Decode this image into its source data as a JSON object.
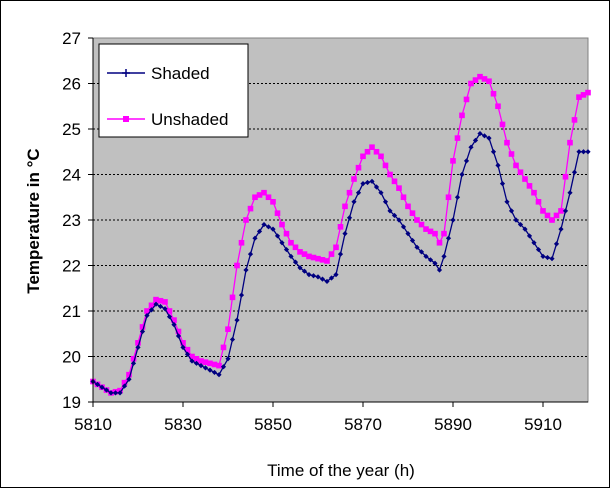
{
  "chart_data": {
    "type": "line",
    "title": "",
    "xlabel": "Time of the year (h)",
    "ylabel": "Temperature in °C",
    "xlim": [
      5810,
      5920
    ],
    "ylim": [
      19,
      27
    ],
    "x_ticks": [
      5810,
      5830,
      5850,
      5870,
      5890,
      5910
    ],
    "y_ticks": [
      19,
      20,
      21,
      22,
      23,
      24,
      25,
      26,
      27
    ],
    "grid": "horizontal",
    "plot_background": "#c0c0c0",
    "legend_position": "top-left",
    "series": [
      {
        "name": "Shaded",
        "color": "#000080",
        "marker": "cross",
        "points": [
          [
            5810,
            19.45
          ],
          [
            5814,
            19.2
          ],
          [
            5816,
            19.2
          ],
          [
            5818,
            19.5
          ],
          [
            5820,
            20.2
          ],
          [
            5822,
            20.9
          ],
          [
            5824,
            21.15
          ],
          [
            5826,
            21.05
          ],
          [
            5828,
            20.7
          ],
          [
            5830,
            20.2
          ],
          [
            5832,
            19.9
          ],
          [
            5834,
            19.8
          ],
          [
            5836,
            19.7
          ],
          [
            5838,
            19.6
          ],
          [
            5840,
            19.95
          ],
          [
            5842,
            20.8
          ],
          [
            5844,
            21.9
          ],
          [
            5846,
            22.6
          ],
          [
            5848,
            22.9
          ],
          [
            5850,
            22.8
          ],
          [
            5852,
            22.5
          ],
          [
            5854,
            22.2
          ],
          [
            5856,
            21.95
          ],
          [
            5858,
            21.8
          ],
          [
            5860,
            21.75
          ],
          [
            5862,
            21.65
          ],
          [
            5864,
            21.8
          ],
          [
            5866,
            22.7
          ],
          [
            5868,
            23.4
          ],
          [
            5870,
            23.8
          ],
          [
            5872,
            23.85
          ],
          [
            5874,
            23.6
          ],
          [
            5876,
            23.2
          ],
          [
            5878,
            23.0
          ],
          [
            5880,
            22.7
          ],
          [
            5882,
            22.4
          ],
          [
            5884,
            22.2
          ],
          [
            5886,
            22.05
          ],
          [
            5887,
            21.9
          ],
          [
            5888,
            22.2
          ],
          [
            5890,
            23.0
          ],
          [
            5892,
            24.0
          ],
          [
            5894,
            24.6
          ],
          [
            5896,
            24.9
          ],
          [
            5898,
            24.8
          ],
          [
            5900,
            24.2
          ],
          [
            5902,
            23.4
          ],
          [
            5904,
            23.0
          ],
          [
            5906,
            22.8
          ],
          [
            5908,
            22.5
          ],
          [
            5910,
            22.2
          ],
          [
            5912,
            22.15
          ],
          [
            5914,
            22.8
          ],
          [
            5916,
            23.6
          ],
          [
            5918,
            24.5
          ],
          [
            5920,
            24.5
          ]
        ]
      },
      {
        "name": "Unshaded",
        "color": "#ff00ff",
        "marker": "square",
        "points": [
          [
            5810,
            19.45
          ],
          [
            5814,
            19.2
          ],
          [
            5816,
            19.25
          ],
          [
            5818,
            19.6
          ],
          [
            5820,
            20.3
          ],
          [
            5822,
            21.0
          ],
          [
            5824,
            21.25
          ],
          [
            5826,
            21.2
          ],
          [
            5828,
            20.8
          ],
          [
            5830,
            20.3
          ],
          [
            5832,
            20.0
          ],
          [
            5834,
            19.9
          ],
          [
            5836,
            19.85
          ],
          [
            5838,
            19.8
          ],
          [
            5840,
            20.6
          ],
          [
            5842,
            22.0
          ],
          [
            5844,
            23.0
          ],
          [
            5846,
            23.5
          ],
          [
            5848,
            23.6
          ],
          [
            5850,
            23.4
          ],
          [
            5852,
            22.9
          ],
          [
            5854,
            22.5
          ],
          [
            5856,
            22.3
          ],
          [
            5858,
            22.2
          ],
          [
            5860,
            22.15
          ],
          [
            5862,
            22.1
          ],
          [
            5864,
            22.4
          ],
          [
            5866,
            23.3
          ],
          [
            5868,
            23.9
          ],
          [
            5870,
            24.4
          ],
          [
            5872,
            24.6
          ],
          [
            5874,
            24.4
          ],
          [
            5876,
            24.0
          ],
          [
            5878,
            23.7
          ],
          [
            5880,
            23.3
          ],
          [
            5882,
            23.0
          ],
          [
            5884,
            22.8
          ],
          [
            5886,
            22.7
          ],
          [
            5887,
            22.5
          ],
          [
            5888,
            22.7
          ],
          [
            5890,
            24.3
          ],
          [
            5892,
            25.3
          ],
          [
            5894,
            26.0
          ],
          [
            5896,
            26.15
          ],
          [
            5898,
            26.05
          ],
          [
            5900,
            25.5
          ],
          [
            5902,
            24.7
          ],
          [
            5904,
            24.2
          ],
          [
            5906,
            23.9
          ],
          [
            5908,
            23.6
          ],
          [
            5910,
            23.2
          ],
          [
            5912,
            23.0
          ],
          [
            5914,
            23.2
          ],
          [
            5916,
            24.7
          ],
          [
            5918,
            25.7
          ],
          [
            5920,
            25.8
          ]
        ]
      }
    ]
  }
}
